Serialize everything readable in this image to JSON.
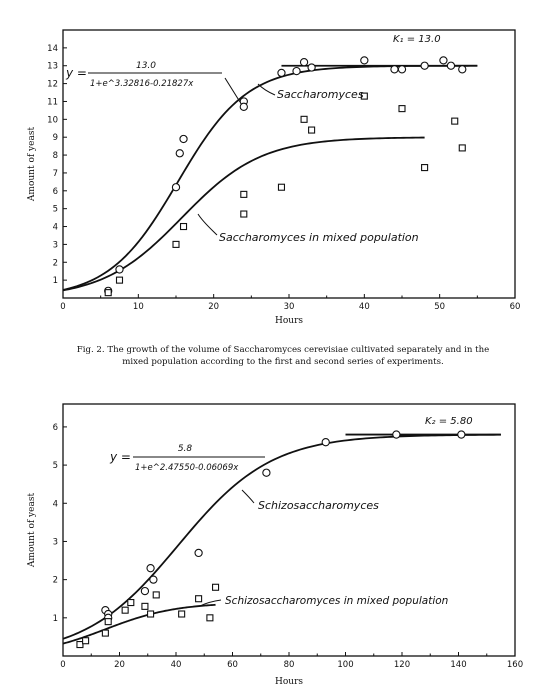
{
  "chart_data": [
    {
      "type": "scatter",
      "xlabel": "Hours",
      "ylabel": "Amount of yeast",
      "xlim": [
        0,
        60
      ],
      "ylim": [
        0,
        15
      ],
      "xticks": [
        "0",
        "10",
        "20",
        "30",
        "40",
        "50",
        "60"
      ],
      "yticks": [
        "1",
        "2",
        "3",
        "4",
        "5",
        "6",
        "7",
        "8",
        "9",
        "10",
        "11",
        "12",
        "13",
        "14"
      ],
      "asymptote_label": "K₁ = 13.0",
      "equation_numerator": "13.0",
      "equation_denominator": "1+e^3.32816-0.21827x",
      "equation_prefix": "y =",
      "caption_line1": "Fig. 2.  The growth of the volume of Saccharomyces cerevisiae cultivated separately and in the",
      "caption_line2": "mixed population according to the first and second series of experiments.",
      "series": [
        {
          "name": "Saccharomyces",
          "marker": "circle",
          "curve": {
            "K": 13.0,
            "a": 3.32816,
            "b": 0.21827,
            "x_range": [
              0,
              55
            ]
          },
          "points": [
            [
              6,
              0.4
            ],
            [
              7.5,
              1.6
            ],
            [
              15,
              6.2
            ],
            [
              15.5,
              8.1
            ],
            [
              16,
              8.9
            ],
            [
              24,
              11.0
            ],
            [
              24,
              10.7
            ],
            [
              29,
              12.6
            ],
            [
              31,
              12.7
            ],
            [
              32,
              13.2
            ],
            [
              33,
              12.9
            ],
            [
              40,
              13.3
            ],
            [
              44,
              12.8
            ],
            [
              45,
              12.8
            ],
            [
              48,
              13.0
            ],
            [
              50.5,
              13.3
            ],
            [
              51.5,
              13.0
            ],
            [
              53,
              12.8
            ]
          ]
        },
        {
          "name": "Saccharomyces in mixed population",
          "marker": "square",
          "curve": {
            "K": 9.0,
            "a": 3.0,
            "b": 0.19,
            "x_range": [
              0,
              48
            ]
          },
          "points": [
            [
              6,
              0.3
            ],
            [
              7.5,
              1.0
            ],
            [
              15,
              3.0
            ],
            [
              16,
              4.0
            ],
            [
              24,
              4.7
            ],
            [
              24,
              5.8
            ],
            [
              29,
              6.2
            ],
            [
              32,
              10.0
            ],
            [
              33,
              9.4
            ],
            [
              40,
              11.3
            ],
            [
              45,
              10.6
            ],
            [
              48,
              7.3
            ],
            [
              52,
              9.9
            ],
            [
              53,
              8.4
            ]
          ]
        }
      ]
    },
    {
      "type": "scatter",
      "xlabel": "Hours",
      "ylabel": "Amount of yeast",
      "xlim": [
        0,
        160
      ],
      "ylim": [
        0,
        6.6
      ],
      "xticks": [
        "0",
        "20",
        "40",
        "60",
        "80",
        "100",
        "120",
        "140",
        "160"
      ],
      "yticks": [
        "1",
        "2",
        "3",
        "4",
        "5",
        "6"
      ],
      "asymptote_label": "K₂ = 5.80",
      "equation_numerator": "5.8",
      "equation_denominator": "1+e^2.47550-0.06069x",
      "equation_prefix": "y =",
      "series": [
        {
          "name": "Schizosaccharomyces",
          "marker": "circle",
          "curve": {
            "K": 5.8,
            "a": 2.4755,
            "b": 0.06069,
            "x_range": [
              0,
              155
            ]
          },
          "points": [
            [
              15,
              1.2
            ],
            [
              16,
              1.1
            ],
            [
              16,
              1.0
            ],
            [
              29,
              1.7
            ],
            [
              31,
              2.3
            ],
            [
              32,
              2.0
            ],
            [
              48,
              2.7
            ],
            [
              72,
              4.8
            ],
            [
              93,
              5.6
            ],
            [
              118,
              5.8
            ],
            [
              141,
              5.8
            ]
          ]
        },
        {
          "name": "Schizosaccharomyces in mixed population",
          "marker": "square",
          "curve": {
            "K": 1.4,
            "a": 1.2,
            "b": 0.08,
            "x_range": [
              0,
              54
            ]
          },
          "points": [
            [
              6,
              0.3
            ],
            [
              8,
              0.4
            ],
            [
              15,
              0.6
            ],
            [
              16,
              0.9
            ],
            [
              22,
              1.2
            ],
            [
              24,
              1.4
            ],
            [
              29,
              1.3
            ],
            [
              31,
              1.1
            ],
            [
              33,
              1.6
            ],
            [
              42,
              1.1
            ],
            [
              48,
              1.5
            ],
            [
              52,
              1.0
            ],
            [
              54,
              1.8
            ]
          ]
        }
      ]
    }
  ]
}
